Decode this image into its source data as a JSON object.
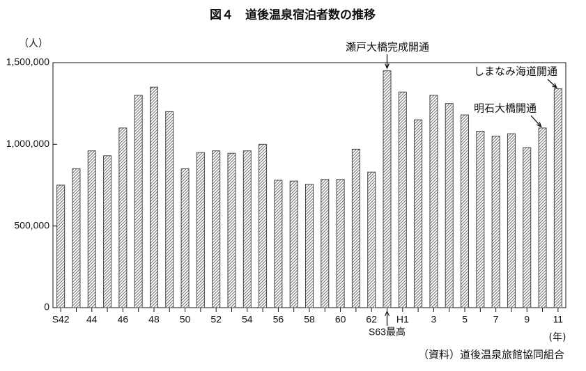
{
  "chart_data": {
    "type": "bar",
    "title": "図４　道後温泉宿泊者数の推移",
    "y_unit": "（人）",
    "x_unit": "(年)",
    "source": "（資料）道後温泉旅館協同組合",
    "annotations": [
      "瀬戸大橋完成開通",
      "明石大橋開通",
      "しまなみ海道開通"
    ],
    "categories": [
      "S42",
      null,
      "44",
      null,
      "46",
      null,
      "48",
      null,
      "50",
      null,
      "52",
      null,
      "54",
      null,
      "56",
      null,
      "58",
      null,
      "60",
      null,
      "62",
      "S63最高",
      "H1",
      null,
      "3",
      null,
      "5",
      null,
      "7",
      null,
      "9",
      null,
      "11"
    ],
    "values": [
      750000,
      850000,
      960000,
      930000,
      1100000,
      1300000,
      1350000,
      1200000,
      850000,
      950000,
      960000,
      945000,
      960000,
      1000000,
      780000,
      775000,
      755000,
      785000,
      785000,
      970000,
      830000,
      1450000,
      1320000,
      1150000,
      1300000,
      1250000,
      1180000,
      1080000,
      1050000,
      1065000,
      980000,
      1100000,
      1340000
    ],
    "color": "#444444",
    "ylim": [
      0,
      1500000
    ],
    "yticks": [
      0,
      {
        "value": 500000,
        "label": "500,000"
      },
      {
        "value": 1000000,
        "label": "1,000,000"
      },
      {
        "value": 1500000,
        "label": "1,500,000"
      }
    ],
    "grid": false
  }
}
